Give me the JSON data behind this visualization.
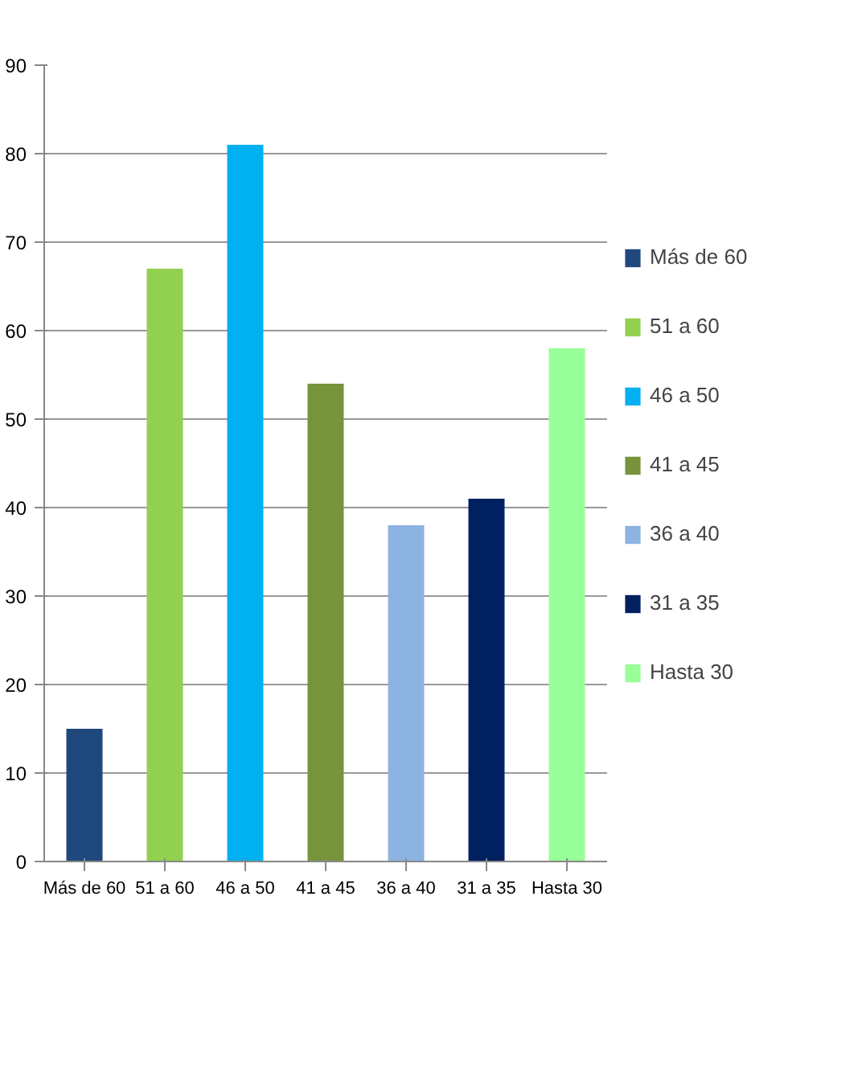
{
  "chart_data": {
    "type": "bar",
    "stacked": true,
    "categories": [
      "Más de 60",
      "51 a 60",
      "46 a 50",
      "41 a 45",
      "36 a 40",
      "31 a 35",
      "Hasta 30"
    ],
    "series": [
      {
        "name": "Más de 60",
        "color": "#1f497d",
        "values": [
          15,
          null,
          null,
          null,
          null,
          null,
          null
        ]
      },
      {
        "name": "51 a 60",
        "color": "#92d050",
        "values": [
          null,
          67,
          null,
          null,
          null,
          null,
          null
        ]
      },
      {
        "name": "46 a 50",
        "color": "#00b0f0",
        "values": [
          null,
          null,
          81,
          null,
          null,
          null,
          null
        ]
      },
      {
        "name": "41 a 45",
        "color": "#77933c",
        "values": [
          null,
          null,
          null,
          54,
          null,
          null,
          null
        ]
      },
      {
        "name": "36 a 40",
        "color": "#8db3e2",
        "values": [
          null,
          null,
          null,
          null,
          38,
          null,
          null
        ]
      },
      {
        "name": "31 a 35",
        "color": "#002060",
        "values": [
          null,
          null,
          null,
          null,
          null,
          41,
          null
        ]
      },
      {
        "name": "Hasta 30",
        "color": "#99ff99",
        "values": [
          null,
          null,
          null,
          null,
          null,
          null,
          58
        ]
      }
    ],
    "ylim": [
      0,
      90
    ],
    "yticks": [
      0,
      10,
      20,
      30,
      40,
      50,
      60,
      70,
      80,
      90
    ],
    "grid": "y",
    "legend": "right"
  }
}
